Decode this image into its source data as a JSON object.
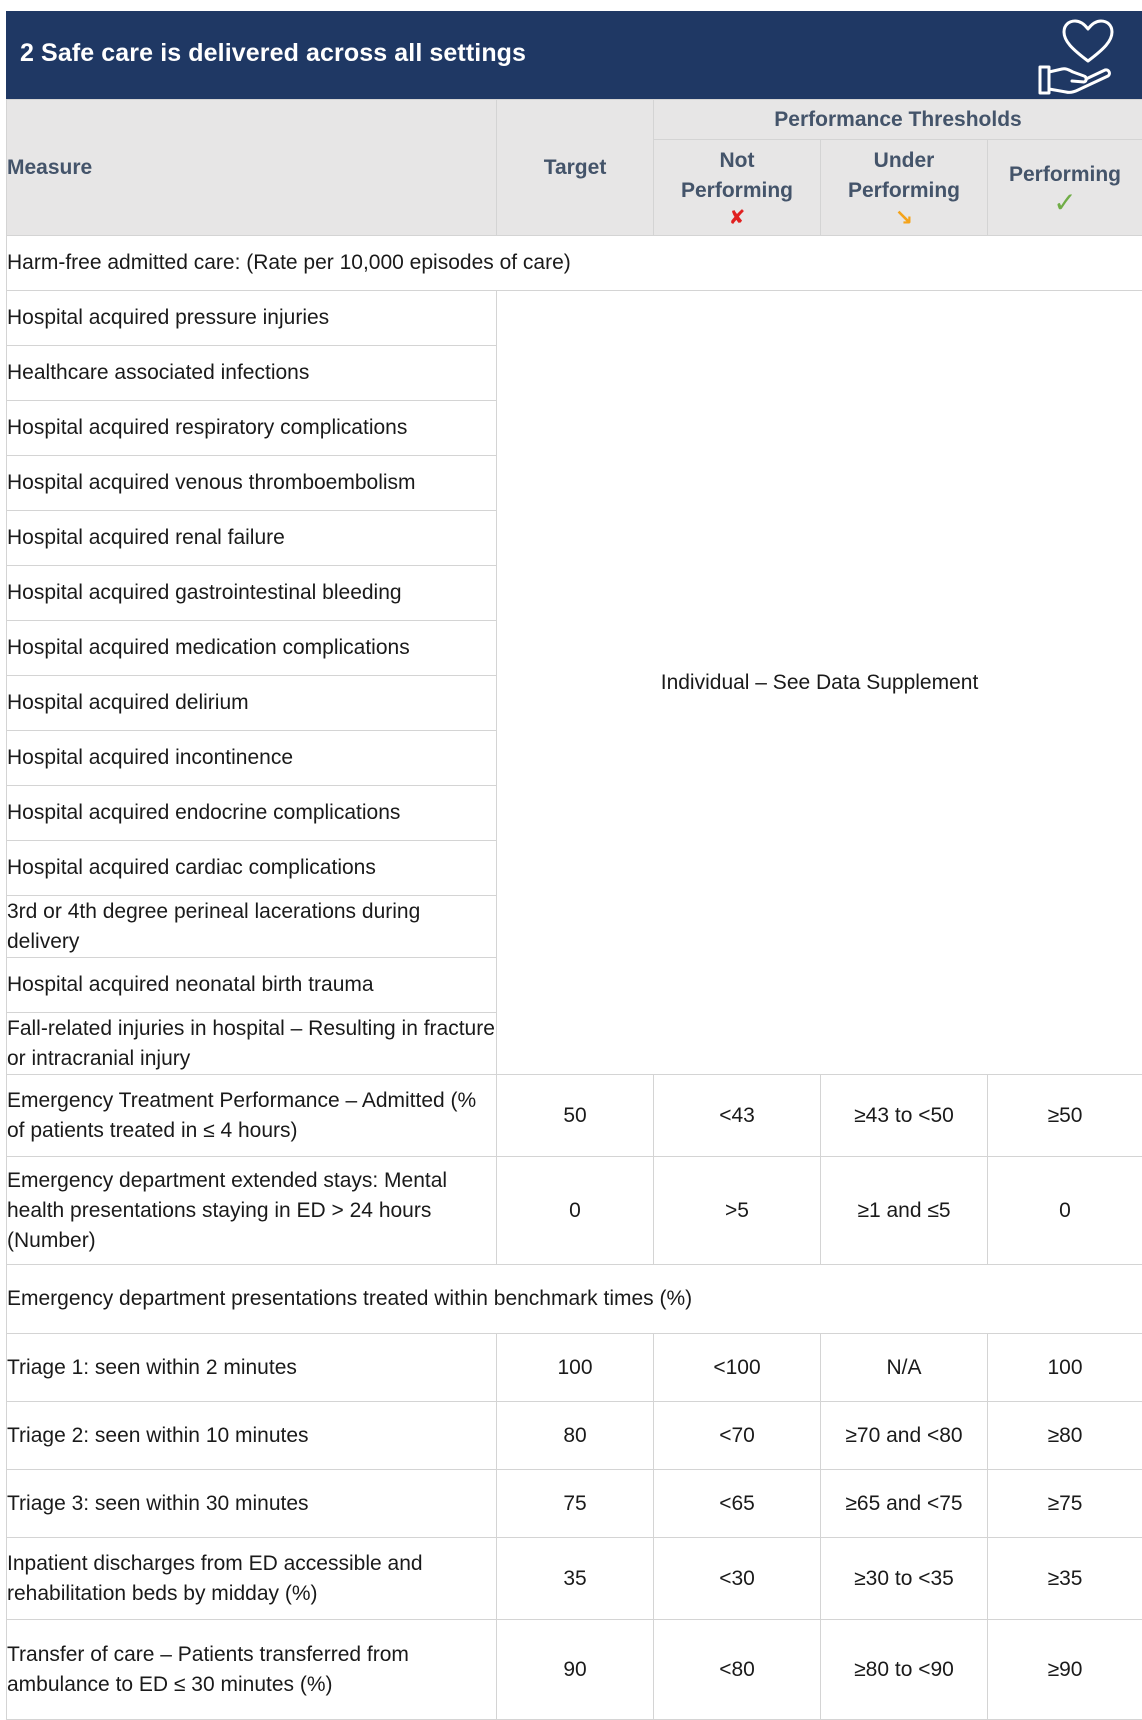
{
  "header": {
    "title": "2 Safe care is delivered across all settings",
    "icon": "heart-in-hand-icon"
  },
  "table": {
    "columns": {
      "measure": "Measure",
      "target": "Target",
      "thresholds": "Performance Thresholds",
      "not_performing_1": "Not",
      "not_performing_2": "Performing",
      "under_performing_1": "Under",
      "under_performing_2": "Performing",
      "performing": "Performing"
    },
    "symbols": {
      "not_performing": "✘",
      "under_performing": "↘",
      "performing": "✓"
    },
    "harm_free": {
      "heading": "Harm-free admitted care: (Rate per 10,000 episodes of care)",
      "span_text": "Individual – See Data Supplement",
      "items": [
        "Hospital acquired pressure injuries",
        "Healthcare associated infections",
        "Hospital acquired respiratory complications",
        "Hospital acquired venous thromboembolism",
        "Hospital acquired renal failure",
        "Hospital acquired gastrointestinal bleeding",
        "Hospital acquired medication complications",
        "Hospital acquired delirium",
        "Hospital acquired incontinence",
        "Hospital acquired endocrine complications",
        "Hospital acquired cardiac complications",
        "3rd or 4th degree perineal lacerations during delivery",
        "Hospital acquired neonatal birth trauma",
        "Fall-related injuries in hospital – Resulting in fracture or intracranial injury"
      ]
    },
    "emergency_admitted": {
      "measure": "Emergency Treatment Performance – Admitted (% of patients treated in ≤ 4 hours)",
      "target": "50",
      "not": "<43",
      "under": "≥43 to <50",
      "perf": "≥50"
    },
    "ed_extended": {
      "measure": "Emergency department extended stays: Mental health presentations staying in ED > 24 hours (Number)",
      "target": "0",
      "not": ">5",
      "under": "≥1 and ≤5",
      "perf": "0"
    },
    "benchmark": {
      "heading": "Emergency department presentations treated within benchmark times (%)",
      "rows": [
        {
          "measure": "Triage 1: seen within 2 minutes",
          "target": "100",
          "not": "<100",
          "under": "N/A",
          "perf": "100"
        },
        {
          "measure": "Triage 2: seen within 10 minutes",
          "target": "80",
          "not": "<70",
          "under": "≥70 and <80",
          "perf": "≥80"
        },
        {
          "measure": "Triage 3: seen within 30 minutes",
          "target": "75",
          "not": "<65",
          "under": "≥65 and <75",
          "perf": "≥75"
        }
      ]
    },
    "discharges": {
      "measure": "Inpatient discharges from ED accessible and rehabilitation beds by midday (%)",
      "target": "35",
      "not": "<30",
      "under": "≥30 to <35",
      "perf": "≥35"
    },
    "transfer": {
      "measure": "Transfer of care – Patients transferred from ambulance to ED ≤ 30 minutes (%)",
      "target": "90",
      "not": "<80",
      "under": "≥80 to <90",
      "perf": "≥90"
    }
  }
}
